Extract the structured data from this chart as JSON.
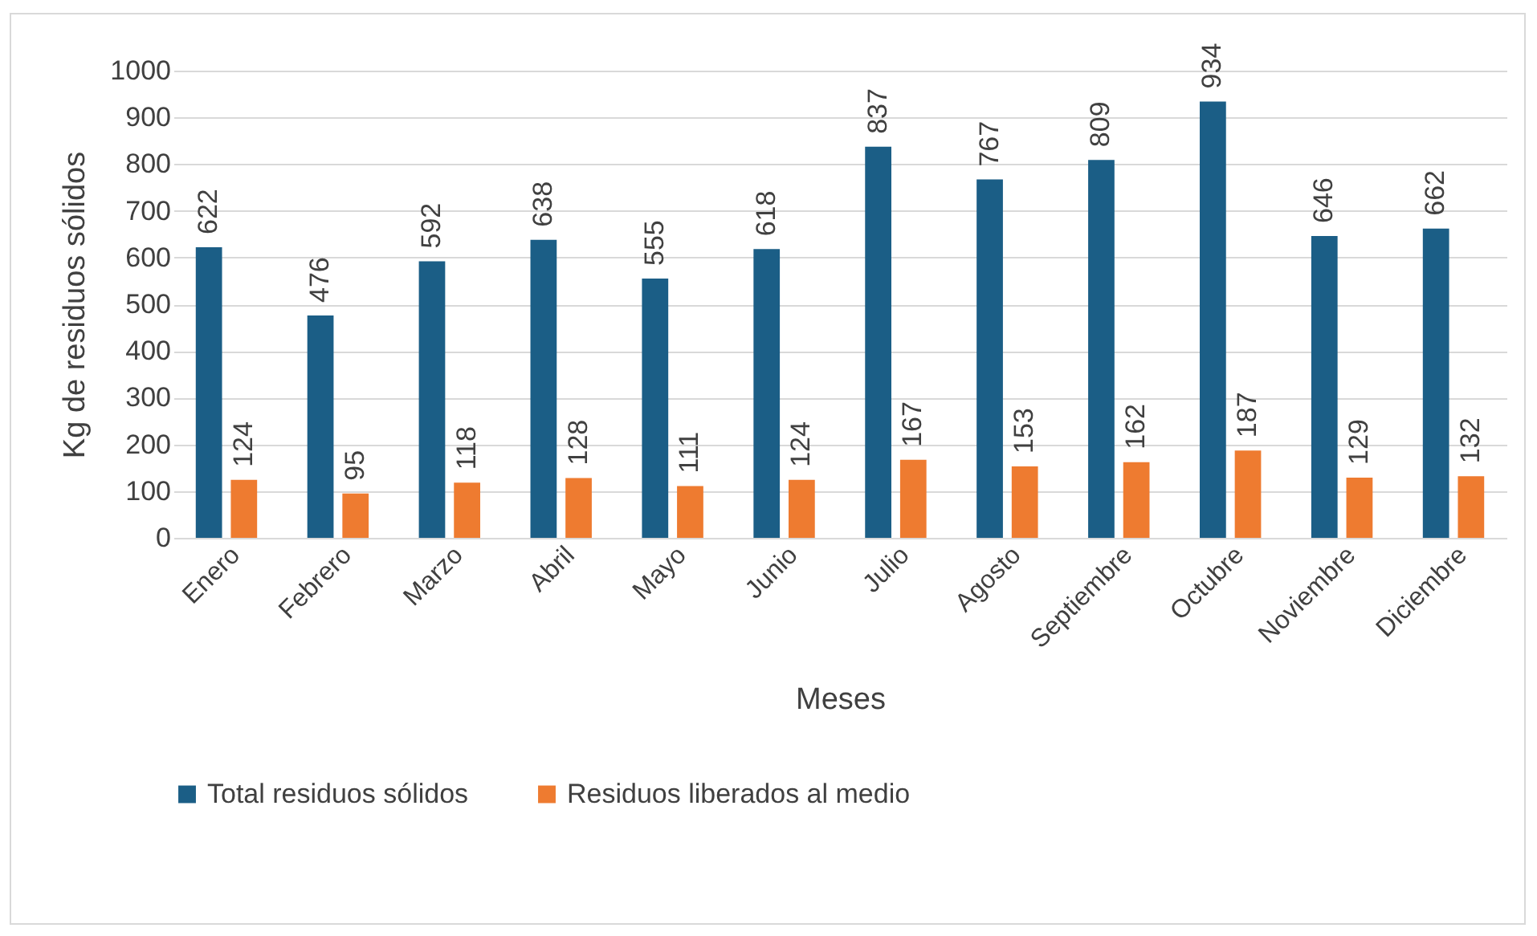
{
  "chart_data": {
    "type": "bar",
    "xlabel": "Meses",
    "ylabel": "Kg de residuos sólidos",
    "categories": [
      "Enero",
      "Febrero",
      "Marzo",
      "Abril",
      "Mayo",
      "Junio",
      "Julio",
      "Agosto",
      "Septiembre",
      "Octubre",
      "Noviembre",
      "Diciembre"
    ],
    "series": [
      {
        "name": "Total residuos sólidos",
        "color": "#1b5e86",
        "values": [
          622,
          476,
          592,
          638,
          555,
          618,
          837,
          767,
          809,
          934,
          646,
          662
        ]
      },
      {
        "name": "Residuos liberados al medio",
        "color": "#ee7b30",
        "values": [
          124,
          95,
          118,
          128,
          111,
          124,
          167,
          153,
          162,
          187,
          129,
          132
        ]
      }
    ],
    "ylim": [
      0,
      1000
    ],
    "yticks": [
      0,
      100,
      200,
      300,
      400,
      500,
      600,
      700,
      800,
      900,
      1000
    ],
    "grid": "y",
    "legend": "bottom",
    "data_labels": true
  }
}
